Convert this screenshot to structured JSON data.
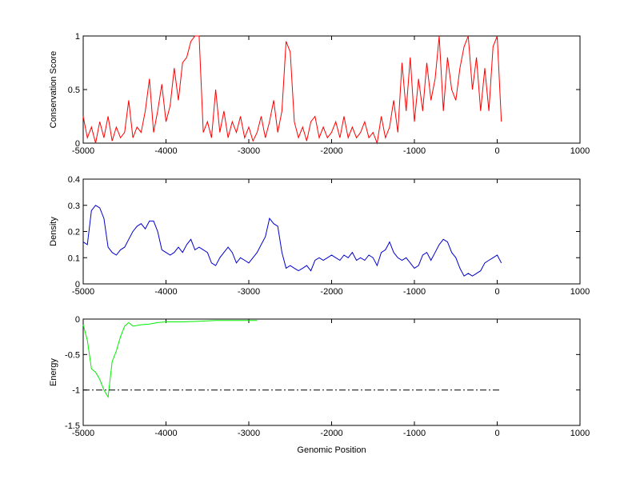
{
  "chart_data": [
    {
      "type": "line",
      "ylabel": "Conservation Score",
      "x": [
        -5000,
        -4950,
        -4900,
        -4850,
        -4800,
        -4750,
        -4700,
        -4650,
        -4600,
        -4550,
        -4500,
        -4450,
        -4400,
        -4350,
        -4300,
        -4250,
        -4200,
        -4150,
        -4100,
        -4050,
        -4000,
        -3950,
        -3900,
        -3850,
        -3800,
        -3750,
        -3700,
        -3650,
        -3600,
        -3550,
        -3500,
        -3450,
        -3400,
        -3350,
        -3300,
        -3250,
        -3200,
        -3150,
        -3100,
        -3050,
        -3000,
        -2950,
        -2900,
        -2850,
        -2800,
        -2750,
        -2700,
        -2650,
        -2600,
        -2550,
        -2500,
        -2450,
        -2400,
        -2350,
        -2300,
        -2250,
        -2200,
        -2150,
        -2100,
        -2050,
        -2000,
        -1950,
        -1900,
        -1850,
        -1800,
        -1750,
        -1700,
        -1650,
        -1600,
        -1550,
        -1500,
        -1450,
        -1400,
        -1350,
        -1300,
        -1250,
        -1200,
        -1150,
        -1100,
        -1050,
        -1000,
        -950,
        -900,
        -850,
        -800,
        -750,
        -700,
        -650,
        -600,
        -550,
        -500,
        -450,
        -400,
        -350,
        -300,
        -250,
        -200,
        -150,
        -100,
        -50,
        0,
        50
      ],
      "series": [
        {
          "color": "#ff0000",
          "values": [
            0.25,
            0.05,
            0.15,
            0.0,
            0.2,
            0.05,
            0.25,
            0.02,
            0.15,
            0.05,
            0.1,
            0.4,
            0.05,
            0.15,
            0.1,
            0.3,
            0.6,
            0.1,
            0.3,
            0.55,
            0.2,
            0.35,
            0.7,
            0.4,
            0.75,
            0.8,
            0.95,
            1,
            1,
            0.1,
            0.2,
            0.05,
            0.5,
            0.1,
            0.3,
            0.05,
            0.2,
            0.1,
            0.25,
            0.05,
            0.15,
            0.02,
            0.1,
            0.25,
            0.05,
            0.2,
            0.4,
            0.1,
            0.3,
            0.95,
            0.85,
            0.2,
            0.05,
            0.15,
            0.02,
            0.2,
            0.25,
            0.05,
            0.15,
            0.05,
            0.1,
            0.2,
            0.05,
            0.25,
            0.05,
            0.15,
            0.05,
            0.1,
            0.2,
            0.05,
            0.1,
            0.0,
            0.25,
            0.05,
            0.15,
            0.4,
            0.1,
            0.75,
            0.3,
            0.8,
            0.2,
            0.6,
            0.3,
            0.75,
            0.4,
            0.6,
            1,
            0.3,
            0.8,
            0.5,
            0.4,
            0.7,
            0.9,
            1,
            0.5,
            0.8,
            0.3,
            0.7,
            0.3,
            0.9,
            1,
            0.2
          ]
        }
      ],
      "xlim": [
        -5000,
        1000
      ],
      "xticks": [
        -5000,
        -4000,
        -3000,
        -2000,
        -1000,
        0,
        1000
      ],
      "ylim": [
        0,
        1
      ],
      "yticks": [
        0,
        0.5,
        1
      ]
    },
    {
      "type": "line",
      "ylabel": "Density",
      "x": [
        -5000,
        -4950,
        -4900,
        -4850,
        -4800,
        -4750,
        -4700,
        -4650,
        -4600,
        -4550,
        -4500,
        -4450,
        -4400,
        -4350,
        -4300,
        -4250,
        -4200,
        -4150,
        -4100,
        -4050,
        -4000,
        -3950,
        -3900,
        -3850,
        -3800,
        -3750,
        -3700,
        -3650,
        -3600,
        -3550,
        -3500,
        -3450,
        -3400,
        -3350,
        -3300,
        -3250,
        -3200,
        -3150,
        -3100,
        -3050,
        -3000,
        -2950,
        -2900,
        -2850,
        -2800,
        -2750,
        -2700,
        -2650,
        -2600,
        -2550,
        -2500,
        -2450,
        -2400,
        -2350,
        -2300,
        -2250,
        -2200,
        -2150,
        -2100,
        -2050,
        -2000,
        -1950,
        -1900,
        -1850,
        -1800,
        -1750,
        -1700,
        -1650,
        -1600,
        -1550,
        -1500,
        -1450,
        -1400,
        -1350,
        -1300,
        -1250,
        -1200,
        -1150,
        -1100,
        -1050,
        -1000,
        -950,
        -900,
        -850,
        -800,
        -750,
        -700,
        -650,
        -600,
        -550,
        -500,
        -450,
        -400,
        -350,
        -300,
        -250,
        -200,
        -150,
        -100,
        -50,
        0,
        50
      ],
      "series": [
        {
          "color": "#0000cc",
          "values": [
            0.16,
            0.15,
            0.28,
            0.3,
            0.29,
            0.25,
            0.14,
            0.12,
            0.11,
            0.13,
            0.14,
            0.17,
            0.2,
            0.22,
            0.23,
            0.21,
            0.24,
            0.24,
            0.2,
            0.13,
            0.12,
            0.11,
            0.12,
            0.14,
            0.12,
            0.15,
            0.17,
            0.13,
            0.14,
            0.13,
            0.12,
            0.08,
            0.07,
            0.1,
            0.12,
            0.14,
            0.12,
            0.08,
            0.1,
            0.09,
            0.08,
            0.1,
            0.12,
            0.15,
            0.18,
            0.25,
            0.23,
            0.22,
            0.12,
            0.06,
            0.07,
            0.06,
            0.05,
            0.06,
            0.07,
            0.05,
            0.09,
            0.1,
            0.09,
            0.1,
            0.11,
            0.1,
            0.09,
            0.11,
            0.1,
            0.12,
            0.09,
            0.1,
            0.09,
            0.11,
            0.1,
            0.07,
            0.12,
            0.13,
            0.16,
            0.12,
            0.1,
            0.09,
            0.1,
            0.08,
            0.06,
            0.07,
            0.11,
            0.12,
            0.09,
            0.12,
            0.15,
            0.17,
            0.16,
            0.12,
            0.1,
            0.06,
            0.03,
            0.04,
            0.03,
            0.04,
            0.05,
            0.08,
            0.09,
            0.1,
            0.11,
            0.08
          ]
        }
      ],
      "xlim": [
        -5000,
        1000
      ],
      "xticks": [
        -5000,
        -4000,
        -3000,
        -2000,
        -1000,
        0,
        1000
      ],
      "ylim": [
        0,
        0.4
      ],
      "yticks": [
        0,
        0.1,
        0.2,
        0.3,
        0.4
      ]
    },
    {
      "type": "line",
      "ylabel": "Energy",
      "xlabel": "Genomic Position",
      "series": [
        {
          "color": "#00ee00",
          "x": [
            -5000,
            -4950,
            -4900,
            -4850,
            -4800,
            -4750,
            -4700,
            -4650,
            -4600,
            -4550,
            -4500,
            -4450,
            -4400,
            -4300,
            -4200,
            -4100,
            -4000,
            -3800,
            -3600,
            -3400,
            -3200,
            -3000,
            -2900
          ],
          "values": [
            -0.08,
            -0.3,
            -0.7,
            -0.75,
            -0.85,
            -1.0,
            -1.1,
            -0.6,
            -0.45,
            -0.25,
            -0.1,
            -0.05,
            -0.1,
            -0.08,
            -0.07,
            -0.05,
            -0.04,
            -0.04,
            -0.03,
            -0.02,
            -0.02,
            -0.02,
            -0.02
          ]
        },
        {
          "color": "#000000",
          "dash": "8 3 2 3",
          "x": [
            -5000,
            50
          ],
          "values": [
            -1,
            -1
          ]
        }
      ],
      "xlim": [
        -5000,
        1000
      ],
      "xticks": [
        -5000,
        -4000,
        -3000,
        -2000,
        -1000,
        0,
        1000
      ],
      "ylim": [
        -1.5,
        0
      ],
      "yticks": [
        -1.5,
        -1,
        -0.5,
        0
      ]
    }
  ]
}
